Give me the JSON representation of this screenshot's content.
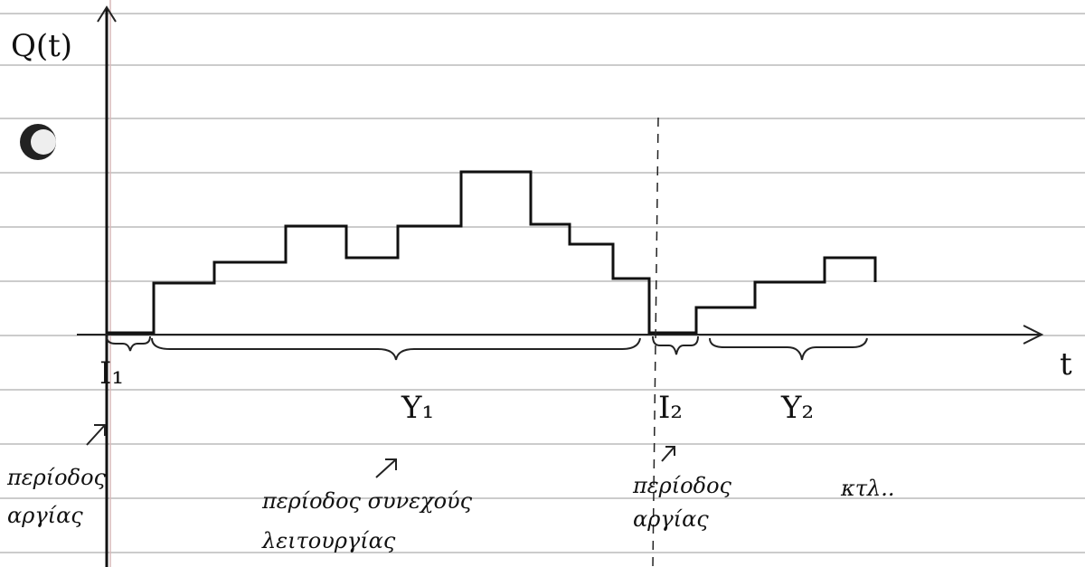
{
  "axes": {
    "y_label": "Q(t)",
    "x_label": "t"
  },
  "periods": [
    {
      "label": "I₁"
    },
    {
      "label": "Y₁"
    },
    {
      "label": "I₂"
    },
    {
      "label": "Y₂"
    }
  ],
  "notes": [
    {
      "lines": [
        "περίοδος",
        "αργίας"
      ]
    },
    {
      "lines": [
        "περίοδος συνεχούς",
        "λειτουργίας"
      ]
    },
    {
      "lines": [
        "περίοδος",
        "αργίας"
      ]
    },
    {
      "lines": [
        "κτλ.."
      ]
    }
  ]
}
